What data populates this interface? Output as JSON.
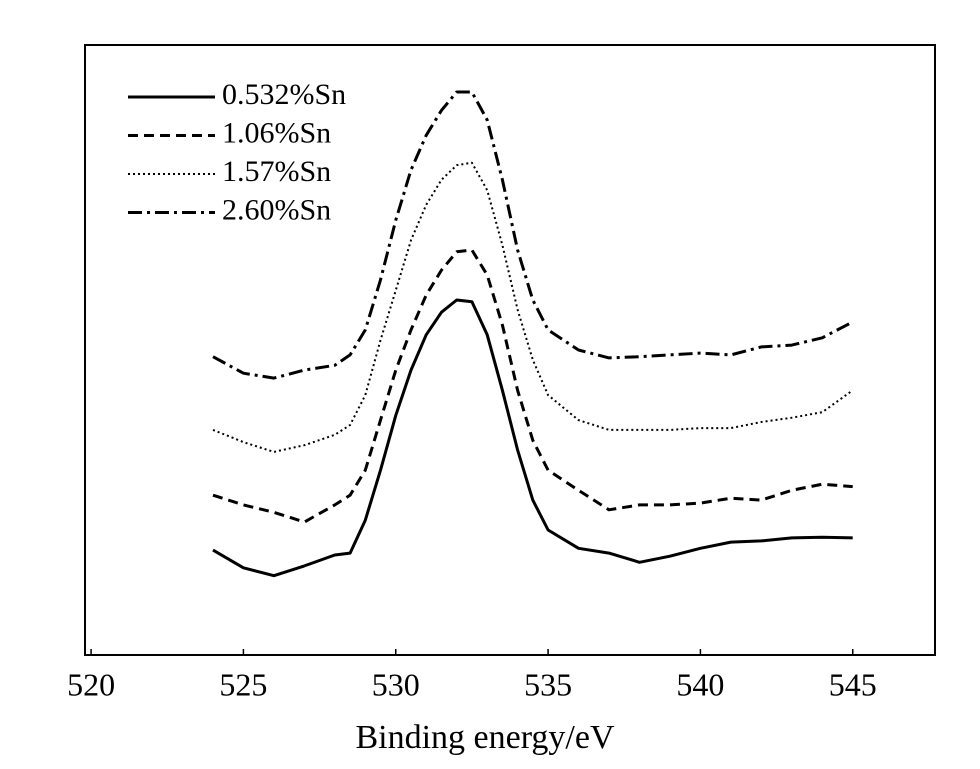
{
  "chart_data": {
    "type": "line",
    "xlabel": "Binding energy/eV",
    "x": [
      524,
      525,
      526,
      527,
      528,
      528.5,
      529,
      529.5,
      530,
      530.5,
      531,
      531.5,
      532,
      532.5,
      533,
      533.5,
      534,
      534.5,
      535,
      536,
      537,
      538,
      539,
      540,
      541,
      542,
      543,
      544,
      545
    ],
    "series": [
      {
        "name": "0.532%Sn",
        "color": "#000000",
        "dash": "solid",
        "values": [
          17.2,
          14.3,
          13.0,
          14.6,
          16.4,
          16.7,
          22.1,
          30.3,
          39.3,
          46.7,
          52.5,
          56.2,
          58.2,
          57.9,
          52.5,
          43.4,
          33.6,
          25.4,
          20.5,
          17.5,
          16.7,
          15.2,
          16.2,
          17.5,
          18.5,
          18.7,
          19.2,
          19.3,
          19.2
        ]
      },
      {
        "name": "1.06%Sn",
        "color": "#000000",
        "dash": "dashed",
        "values": [
          26.2,
          24.6,
          23.4,
          21.8,
          24.6,
          26.2,
          30.3,
          38.5,
          46.7,
          53.3,
          59.0,
          63.1,
          66.1,
          66.4,
          62.3,
          54.1,
          43.4,
          35.2,
          30.3,
          27.0,
          23.8,
          24.6,
          24.6,
          24.9,
          25.7,
          25.4,
          27.0,
          28.0,
          27.6
        ]
      },
      {
        "name": "1.57%Sn",
        "color": "#000000",
        "dash": "dotted",
        "values": [
          36.9,
          34.9,
          33.3,
          34.4,
          36.1,
          37.7,
          42.6,
          51.6,
          59.8,
          68.0,
          73.8,
          77.9,
          80.3,
          80.7,
          76.2,
          67.2,
          56.6,
          48.4,
          42.6,
          38.5,
          36.9,
          36.9,
          36.9,
          37.2,
          37.2,
          38.2,
          38.9,
          39.8,
          43.4
        ]
      },
      {
        "name": "2.60%Sn",
        "color": "#000000",
        "dash": "dashdot",
        "values": [
          48.9,
          46.2,
          45.4,
          46.7,
          47.5,
          49.2,
          53.3,
          61.5,
          71.3,
          79.5,
          85.2,
          89.3,
          92.3,
          92.3,
          87.7,
          77.9,
          66.4,
          58.2,
          53.3,
          50.0,
          48.7,
          48.9,
          49.2,
          49.5,
          49.2,
          50.5,
          50.8,
          52.0,
          54.6
        ]
      }
    ],
    "xlim": [
      519.8,
      547.7
    ],
    "xticks": [
      520,
      525,
      530,
      535,
      540,
      545
    ],
    "ylim": [
      0,
      100
    ],
    "legend": "upper left"
  }
}
